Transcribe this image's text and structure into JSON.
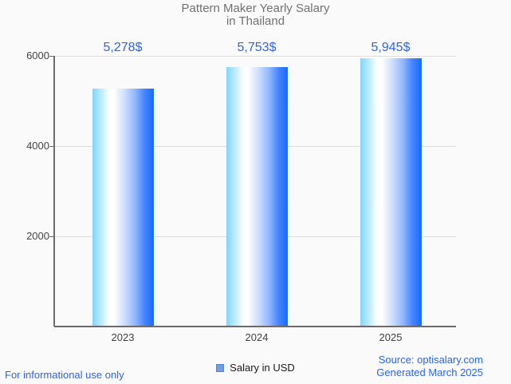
{
  "title": {
    "line1": "Pattern Maker Yearly Salary",
    "line2": "in Thailand"
  },
  "chart_data": {
    "type": "bar",
    "title": "Pattern Maker Yearly Salary in Thailand",
    "categories": [
      "2023",
      "2024",
      "2025"
    ],
    "series": [
      {
        "name": "Salary in USD",
        "values": [
          5278,
          5753,
          5945
        ]
      }
    ],
    "value_labels": [
      "5,278$",
      "5,753$",
      "5,945$"
    ],
    "xlabel": "",
    "ylabel": "",
    "ylim": [
      0,
      6000
    ],
    "yticks": [
      2000,
      4000,
      6000
    ],
    "grid": "horizontal-light",
    "legend_position": "bottom-center",
    "bar_gradient": [
      "#7FD4FC",
      "#FFFFFF",
      "#1A6DFE"
    ]
  },
  "legend": {
    "label": "Salary in USD",
    "swatch_fill": "#6D9EEB",
    "swatch_border": "#4D84D6"
  },
  "footer": {
    "disclaimer": "For informational use only",
    "source": "Source: optisalary.com",
    "generated": "Generated March 2025"
  },
  "colors": {
    "background": "#FAFAFA",
    "title_text": "#717171",
    "axis_text": "#444444",
    "gridline": "#DEDEDE",
    "axis_line": "#6B6B6B",
    "accent_blue": "#2B63EE",
    "bar_left": "#7FD4FC",
    "bar_mid": "#FFFFFF",
    "bar_right": "#1A6DFE"
  }
}
